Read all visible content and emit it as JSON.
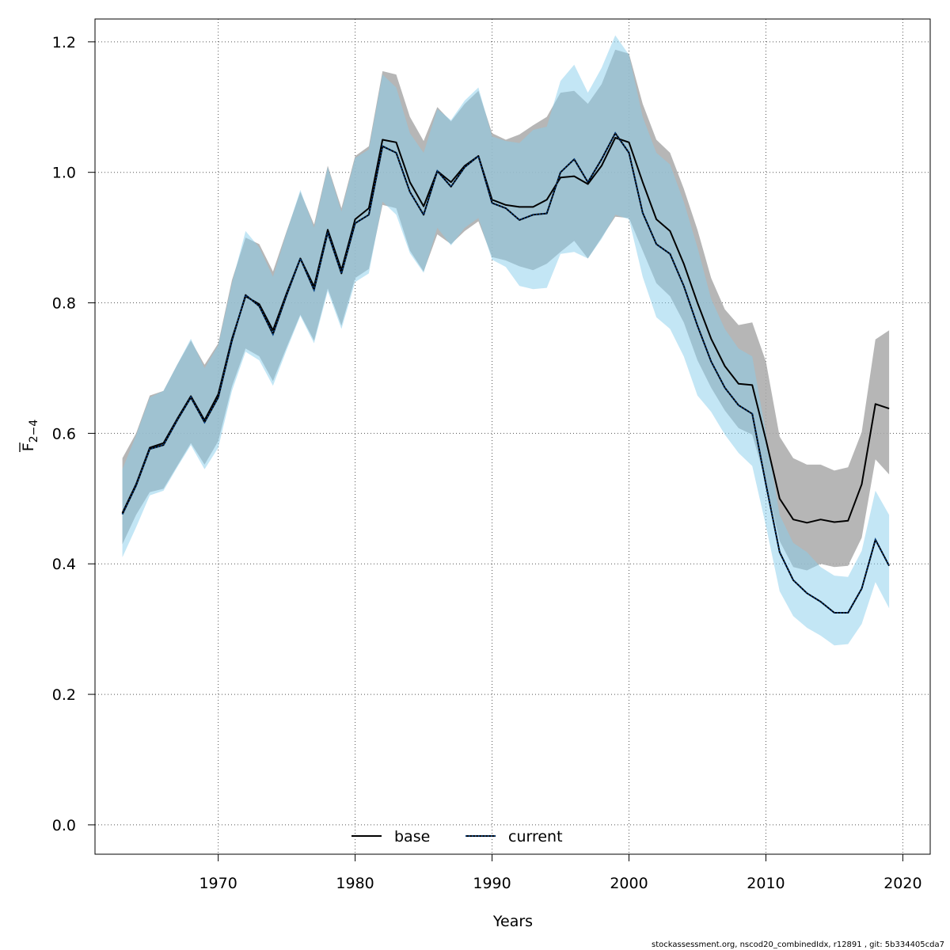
{
  "chart_data": {
    "type": "line",
    "xlabel": "Years",
    "ylabel": {
      "base": "F",
      "sub": "2−4"
    },
    "xlim": [
      1961,
      2022
    ],
    "ylim": [
      -0.045,
      1.235
    ],
    "xticks": [
      "1970",
      "1980",
      "1990",
      "2000",
      "2010",
      "2020"
    ],
    "yticks": [
      "0.0",
      "0.2",
      "0.4",
      "0.6",
      "0.8",
      "1.0",
      "1.2"
    ],
    "grid": true,
    "legend_position": "bottom-center",
    "x": [
      1963,
      1964,
      1965,
      1966,
      1967,
      1968,
      1969,
      1970,
      1971,
      1972,
      1973,
      1974,
      1975,
      1976,
      1977,
      1978,
      1979,
      1980,
      1981,
      1982,
      1983,
      1984,
      1985,
      1986,
      1987,
      1988,
      1989,
      1990,
      1991,
      1992,
      1993,
      1994,
      1995,
      1996,
      1997,
      1998,
      1999,
      2000,
      2001,
      2002,
      2003,
      2004,
      2005,
      2006,
      2007,
      2008,
      2009,
      2010,
      2011,
      2012,
      2013,
      2014,
      2015,
      2016,
      2017,
      2018,
      2019
    ],
    "series": [
      {
        "name": "base",
        "color": "#000000",
        "band_color": "#a9a9a9",
        "dash": "solid",
        "values": [
          0.478,
          0.522,
          0.578,
          0.585,
          0.622,
          0.657,
          0.62,
          0.66,
          0.745,
          0.81,
          0.798,
          0.758,
          0.815,
          0.868,
          0.825,
          0.912,
          0.85,
          0.928,
          0.945,
          1.05,
          1.046,
          0.985,
          0.948,
          1.002,
          0.985,
          1.01,
          1.025,
          0.958,
          0.95,
          0.947,
          0.947,
          0.958,
          0.992,
          0.994,
          0.982,
          1.01,
          1.053,
          1.046,
          0.985,
          0.928,
          0.91,
          0.86,
          0.8,
          0.745,
          0.703,
          0.676,
          0.674,
          0.59,
          0.5,
          0.468,
          0.463,
          0.468,
          0.464,
          0.466,
          0.522,
          0.645,
          0.638
        ],
        "lower": [
          0.43,
          0.475,
          0.51,
          0.515,
          0.55,
          0.585,
          0.552,
          0.588,
          0.672,
          0.73,
          0.718,
          0.68,
          0.732,
          0.782,
          0.742,
          0.822,
          0.765,
          0.838,
          0.852,
          0.95,
          0.945,
          0.88,
          0.848,
          0.905,
          0.89,
          0.91,
          0.925,
          0.87,
          0.865,
          0.856,
          0.85,
          0.86,
          0.878,
          0.895,
          0.868,
          0.9,
          0.932,
          0.93,
          0.88,
          0.83,
          0.81,
          0.77,
          0.712,
          0.67,
          0.635,
          0.608,
          0.598,
          0.525,
          0.435,
          0.395,
          0.39,
          0.4,
          0.395,
          0.397,
          0.44,
          0.56,
          0.537
        ],
        "upper": [
          0.562,
          0.6,
          0.658,
          0.665,
          0.705,
          0.742,
          0.705,
          0.738,
          0.835,
          0.9,
          0.89,
          0.848,
          0.91,
          0.97,
          0.92,
          1.01,
          0.945,
          1.025,
          1.04,
          1.155,
          1.15,
          1.085,
          1.048,
          1.1,
          1.078,
          1.105,
          1.125,
          1.06,
          1.05,
          1.058,
          1.072,
          1.085,
          1.122,
          1.125,
          1.105,
          1.135,
          1.188,
          1.182,
          1.105,
          1.05,
          1.03,
          0.975,
          0.912,
          0.838,
          0.79,
          0.766,
          0.77,
          0.71,
          0.595,
          0.562,
          0.552,
          0.552,
          0.543,
          0.548,
          0.602,
          0.744,
          0.758
        ]
      },
      {
        "name": "current",
        "color": "#003c82",
        "band_color": "#87ceeb",
        "dash": "dotted",
        "values": [
          0.476,
          0.52,
          0.576,
          0.582,
          0.62,
          0.655,
          0.617,
          0.655,
          0.742,
          0.812,
          0.795,
          0.752,
          0.812,
          0.868,
          0.82,
          0.908,
          0.845,
          0.922,
          0.935,
          1.04,
          1.03,
          0.97,
          0.935,
          1.002,
          0.978,
          1.008,
          1.025,
          0.953,
          0.945,
          0.927,
          0.935,
          0.937,
          1.0,
          1.02,
          0.985,
          1.02,
          1.06,
          1.03,
          0.938,
          0.89,
          0.875,
          0.826,
          0.765,
          0.71,
          0.67,
          0.643,
          0.63,
          0.522,
          0.418,
          0.375,
          0.355,
          0.342,
          0.325,
          0.325,
          0.362,
          0.437,
          0.397
        ],
        "lower": [
          0.41,
          0.456,
          0.505,
          0.512,
          0.548,
          0.582,
          0.545,
          0.578,
          0.665,
          0.725,
          0.712,
          0.673,
          0.728,
          0.78,
          0.738,
          0.818,
          0.76,
          0.832,
          0.845,
          0.955,
          0.935,
          0.876,
          0.846,
          0.915,
          0.888,
          0.915,
          0.93,
          0.866,
          0.855,
          0.826,
          0.821,
          0.823,
          0.875,
          0.878,
          0.868,
          0.898,
          0.935,
          0.928,
          0.84,
          0.778,
          0.76,
          0.718,
          0.658,
          0.633,
          0.598,
          0.57,
          0.55,
          0.458,
          0.358,
          0.32,
          0.302,
          0.29,
          0.275,
          0.277,
          0.308,
          0.372,
          0.332
        ],
        "upper": [
          0.545,
          0.597,
          0.655,
          0.665,
          0.705,
          0.745,
          0.7,
          0.735,
          0.83,
          0.91,
          0.885,
          0.84,
          0.908,
          0.973,
          0.915,
          1.008,
          0.94,
          1.022,
          1.035,
          1.15,
          1.13,
          1.06,
          1.03,
          1.097,
          1.08,
          1.11,
          1.13,
          1.055,
          1.048,
          1.045,
          1.065,
          1.07,
          1.14,
          1.165,
          1.122,
          1.16,
          1.21,
          1.18,
          1.085,
          1.03,
          1.012,
          0.955,
          0.885,
          0.806,
          0.76,
          0.73,
          0.718,
          0.6,
          0.475,
          0.432,
          0.418,
          0.395,
          0.382,
          0.38,
          0.42,
          0.512,
          0.475
        ]
      }
    ],
    "footer": "stockassessment.org, nscod20_combinedIdx, r12891 , git: 5b334405cda7"
  }
}
